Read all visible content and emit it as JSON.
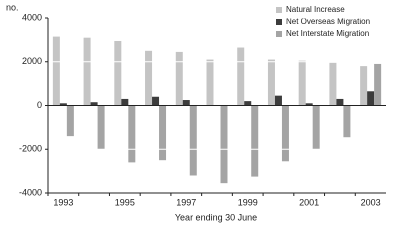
{
  "chart_data": {
    "type": "bar",
    "y_unit": "no.",
    "x_axis_label": "Year ending 30 June",
    "categories": [
      "1993",
      null,
      "1995",
      null,
      "1997",
      null,
      "1999",
      null,
      "2001",
      null,
      "2003"
    ],
    "series": [
      {
        "name": "Natural Increase",
        "color": "#c4c4c4",
        "values": [
          3150,
          3100,
          2950,
          2500,
          2450,
          2100,
          2650,
          2100,
          2050,
          1950,
          1800
        ]
      },
      {
        "name": "Net Overseas Migration",
        "color": "#3c3c3c",
        "values": [
          100,
          150,
          300,
          400,
          250,
          20,
          200,
          450,
          100,
          300,
          650
        ]
      },
      {
        "name": "Net Interstate Migration",
        "color": "#a4a4a4",
        "values": [
          -1400,
          -2000,
          -2600,
          -2500,
          -3200,
          -3550,
          -3250,
          -2550,
          -2000,
          -1450,
          1900
        ]
      }
    ],
    "ylim": [
      -4000,
      4000
    ],
    "yticks": [
      -4000,
      -2000,
      0,
      2000,
      4000
    ],
    "grid": true,
    "legend": "top-right"
  }
}
